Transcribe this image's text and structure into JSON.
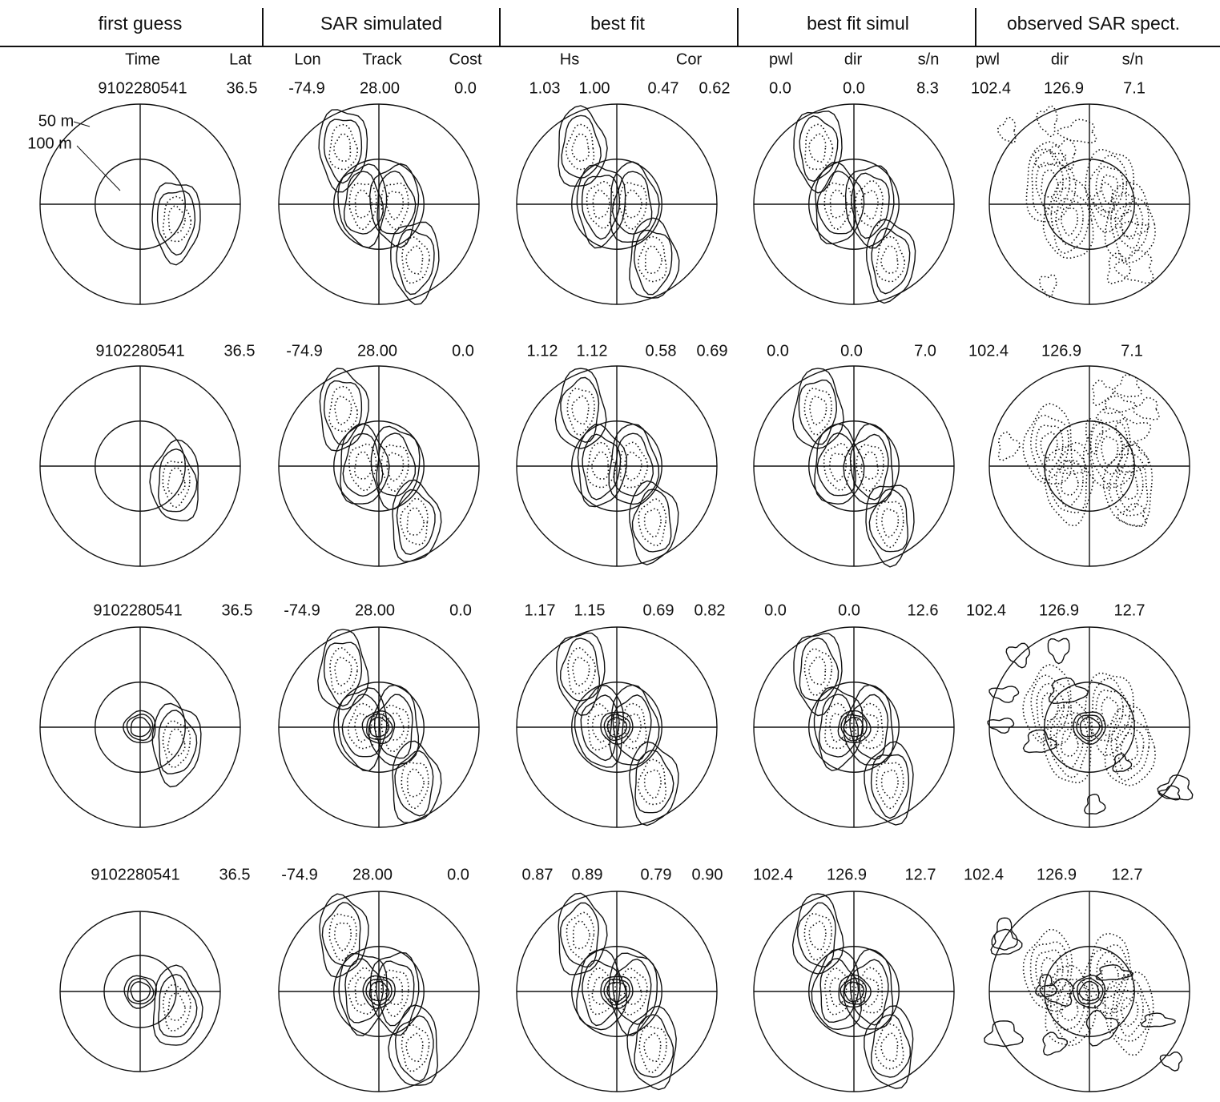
{
  "headers": [
    "first guess",
    "SAR simulated",
    "best fit",
    "best fit simul",
    "observed SAR spect."
  ],
  "subheaders": [
    "Time",
    "Lat",
    "Lon",
    "Track",
    "Cost",
    "Hs",
    "Cor",
    "pwl",
    "dir",
    "s/n",
    "pwl",
    "dir",
    "s/n"
  ],
  "rows": [
    [
      "9102280541",
      "36.5",
      "-74.9",
      "28.00",
      "0.0",
      "1.03",
      "1.00",
      "0.47",
      "0.62",
      "0.0",
      "0.0",
      "8.3",
      "102.4",
      "126.9",
      "7.1"
    ],
    [
      "9102280541",
      "36.5",
      "-74.9",
      "28.00",
      "0.0",
      "1.12",
      "1.12",
      "0.58",
      "0.69",
      "0.0",
      "0.0",
      "7.0",
      "102.4",
      "126.9",
      "7.1"
    ],
    [
      "9102280541",
      "36.5",
      "-74.9",
      "28.00",
      "0.0",
      "1.17",
      "1.15",
      "0.69",
      "0.82",
      "0.0",
      "0.0",
      "12.6",
      "102.4",
      "126.9",
      "12.7"
    ],
    [
      "9102280541",
      "36.5",
      "-74.9",
      "28.00",
      "0.0",
      "0.87",
      "0.89",
      "0.79",
      "0.90",
      "102.4",
      "126.9",
      "12.7",
      "102.4",
      "126.9",
      "12.7"
    ]
  ],
  "ring_labels": [
    "50 m",
    "100 m"
  ]
}
